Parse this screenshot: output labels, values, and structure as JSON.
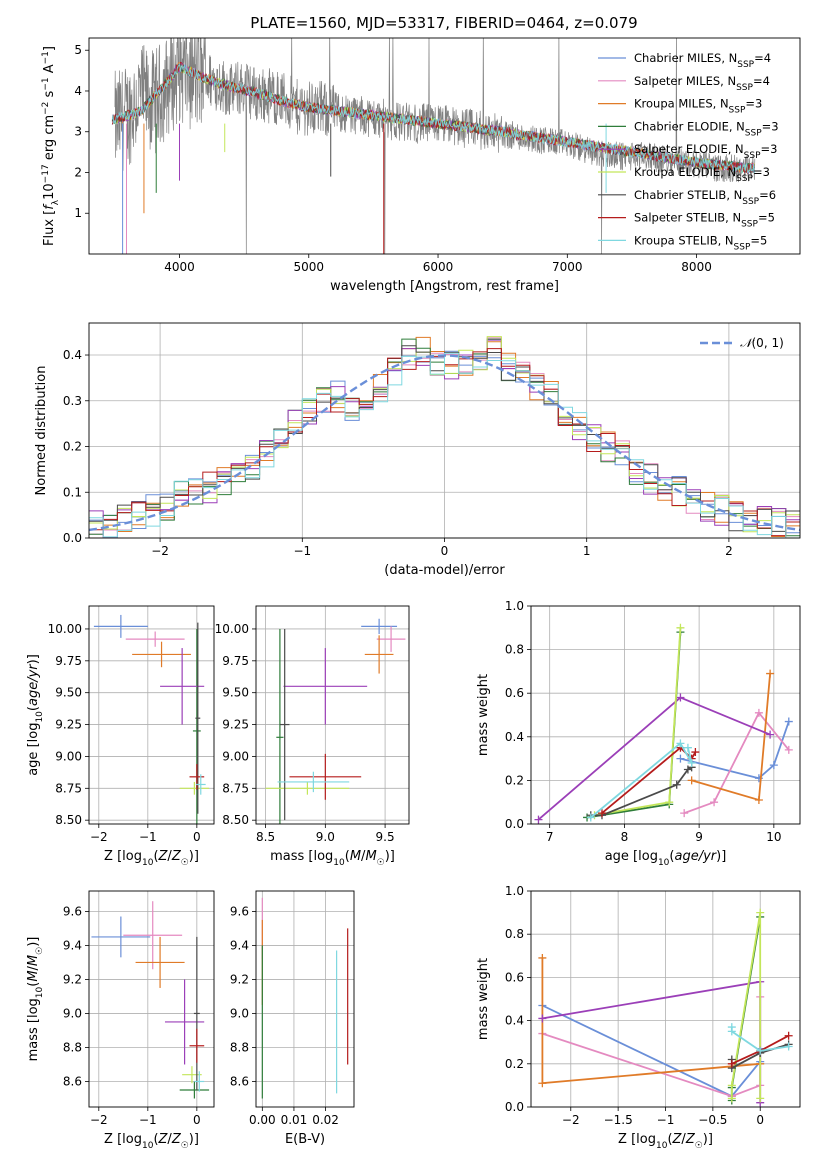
{
  "figure": {
    "title": "PLATE=1560, MJD=53317, FIBERID=0464, z=0.079"
  },
  "chart_data": [
    {
      "id": "spectrum",
      "type": "line",
      "title": "PLATE=1560, MJD=53317, FIBERID=0464, z=0.079",
      "xlabel": "wavelength [Angstrom, rest frame]",
      "ylabel": "Flux [fλ 10⁻¹⁷ erg cm⁻² s⁻¹ A⁻¹]",
      "xlim": [
        3300,
        8800
      ],
      "ylim": [
        0,
        5.3
      ],
      "xticks": [
        4000,
        5000,
        6000,
        7000,
        8000
      ],
      "yticks": [
        1,
        2,
        3,
        4,
        5
      ],
      "grid": false,
      "legend_position": "top-right",
      "data_color": "#808080",
      "data_x": [
        3500,
        3600,
        3700,
        3800,
        3900,
        4000,
        4100,
        4200,
        4300,
        4400,
        4500,
        4600,
        4700,
        4800,
        4900,
        5000,
        5200,
        5400,
        5600,
        5800,
        6000,
        6200,
        6400,
        6600,
        6800,
        7000,
        7200,
        7400,
        7600,
        7800,
        8000,
        8200,
        8400
      ],
      "data_y": [
        3.2,
        3.4,
        3.9,
        3.7,
        4.1,
        4.5,
        4.3,
        4.3,
        4.2,
        4.0,
        4.1,
        3.9,
        3.9,
        3.8,
        3.6,
        3.6,
        3.5,
        3.4,
        3.3,
        3.2,
        3.2,
        3.1,
        3.0,
        2.9,
        2.8,
        2.7,
        2.5,
        2.4,
        2.4,
        2.3,
        2.2,
        2.1,
        2.1
      ],
      "series": [
        {
          "name": "Chabrier MILES, N_SSP=4",
          "color": "#6a8fd8"
        },
        {
          "name": "Salpeter MILES, N_SSP=4",
          "color": "#e48ac0"
        },
        {
          "name": "Kroupa MILES, N_SSP=3",
          "color": "#e07b28"
        },
        {
          "name": "Chabrier ELODIE, N_SSP=3",
          "color": "#2f7d3a"
        },
        {
          "name": "Salpeter ELODIE, N_SSP=3",
          "color": "#9b3fb8"
        },
        {
          "name": "Kroupa ELODIE, N_SSP=3",
          "color": "#c3e65a"
        },
        {
          "name": "Chabrier STELIB, N_SSP=6",
          "color": "#4a4a4a"
        },
        {
          "name": "Salpeter STELIB, N_SSP=5",
          "color": "#b51c1c"
        },
        {
          "name": "Kroupa STELIB, N_SSP=5",
          "color": "#7fd8e0"
        }
      ],
      "legend_labels": [
        [
          "Chabrier MILES, N",
          "SSP",
          "=4"
        ],
        [
          "Salpeter MILES, N",
          "SSP",
          "=4"
        ],
        [
          "Kroupa MILES, N",
          "SSP",
          "=3"
        ],
        [
          "Chabrier ELODIE, N",
          "SSP",
          "=3"
        ],
        [
          "Salpeter ELODIE, N",
          "SSP",
          "=3"
        ],
        [
          "Kroupa ELODIE, N",
          "SSP",
          "=3"
        ],
        [
          "Chabrier STELIB, N",
          "SSP",
          "=6"
        ],
        [
          "Salpeter STELIB, N",
          "SSP",
          "=5"
        ],
        [
          "Kroupa STELIB, N",
          "SSP",
          "=5"
        ]
      ],
      "model_x": [
        3500,
        3700,
        3900,
        4000,
        4200,
        4400,
        4600,
        4800,
        5000,
        5500,
        6000,
        6500,
        7000,
        7500,
        8000,
        8400
      ],
      "model_y": [
        3.3,
        3.5,
        4.2,
        4.6,
        4.3,
        4.1,
        3.95,
        3.75,
        3.6,
        3.4,
        3.2,
        3.0,
        2.75,
        2.5,
        2.25,
        2.1
      ]
    },
    {
      "id": "residuals",
      "type": "histogram",
      "xlabel": "(data-model)/error",
      "ylabel": "Normed distribution",
      "xlim": [
        -2.5,
        2.5
      ],
      "ylim": [
        0,
        0.47
      ],
      "xticks": [
        -2,
        -1,
        0,
        1,
        2
      ],
      "yticks": [
        0.0,
        0.1,
        0.2,
        0.3,
        0.4
      ],
      "grid": true,
      "legend_position": "top-right",
      "reference_curve": {
        "name": "N(0,1)",
        "color": "#6a8fd8"
      },
      "bin_edges": [
        -2.5,
        -2.4,
        -2.3,
        -2.2,
        -2.1,
        -2.0,
        -1.9,
        -1.8,
        -1.7,
        -1.6,
        -1.5,
        -1.4,
        -1.3,
        -1.2,
        -1.1,
        -1.0,
        -0.9,
        -0.8,
        -0.7,
        -0.6,
        -0.5,
        -0.4,
        -0.3,
        -0.2,
        -0.1,
        0.0,
        0.1,
        0.2,
        0.3,
        0.4,
        0.5,
        0.6,
        0.7,
        0.8,
        0.9,
        1.0,
        1.1,
        1.2,
        1.3,
        1.4,
        1.5,
        1.6,
        1.7,
        1.8,
        1.9,
        2.0,
        2.1,
        2.2,
        2.3,
        2.4,
        2.5
      ],
      "hist_values": [
        0.03,
        0.035,
        0.04,
        0.05,
        0.06,
        0.07,
        0.09,
        0.1,
        0.11,
        0.12,
        0.14,
        0.16,
        0.19,
        0.21,
        0.25,
        0.28,
        0.3,
        0.31,
        0.28,
        0.3,
        0.33,
        0.36,
        0.4,
        0.41,
        0.39,
        0.38,
        0.39,
        0.4,
        0.41,
        0.37,
        0.35,
        0.33,
        0.31,
        0.28,
        0.25,
        0.22,
        0.2,
        0.18,
        0.15,
        0.13,
        0.11,
        0.1,
        0.08,
        0.07,
        0.06,
        0.05,
        0.045,
        0.04,
        0.035,
        0.03
      ]
    },
    {
      "id": "age-vs-Z",
      "type": "errorbar",
      "xlabel": "Z [log10(Z/Z☉)]",
      "ylabel": "age [log10(age/yr)]",
      "xlim": [
        -2.2,
        0.35
      ],
      "ylim": [
        8.47,
        10.18
      ],
      "xticks": [
        -2,
        -1,
        0
      ],
      "yticks": [
        8.5,
        8.75,
        9.0,
        9.25,
        9.5,
        9.75,
        10.0
      ],
      "points": [
        {
          "series": 0,
          "x": -1.55,
          "y": 10.02,
          "xerr": 0.55,
          "yerr": 0.09
        },
        {
          "series": 1,
          "x": -0.85,
          "y": 9.92,
          "xerr": 0.6,
          "yerr": 0.06
        },
        {
          "series": 2,
          "x": -0.72,
          "y": 9.8,
          "xerr": 0.6,
          "yerr": 0.1
        },
        {
          "series": 3,
          "x": 0.0,
          "y": 9.2,
          "xerr": 0.08,
          "yerr": 0.8
        },
        {
          "series": 4,
          "x": -0.3,
          "y": 9.55,
          "xerr": 0.45,
          "yerr": 0.3
        },
        {
          "series": 5,
          "x": -0.05,
          "y": 8.75,
          "xerr": 0.3,
          "yerr": 0.05
        },
        {
          "series": 6,
          "x": 0.02,
          "y": 9.3,
          "xerr": 0.05,
          "yerr": 0.75
        },
        {
          "series": 7,
          "x": 0.0,
          "y": 8.84,
          "xerr": 0.15,
          "yerr": 0.1
        },
        {
          "series": 8,
          "x": 0.08,
          "y": 8.78,
          "xerr": 0.1,
          "yerr": 0.08
        }
      ]
    },
    {
      "id": "age-vs-mass",
      "type": "errorbar",
      "xlabel": "mass [log10(M/M☉)]",
      "xlim": [
        8.42,
        9.7
      ],
      "ylim": [
        8.47,
        10.18
      ],
      "xticks": [
        8.5,
        9.0,
        9.5
      ],
      "yticks": [
        8.5,
        8.75,
        9.0,
        9.25,
        9.5,
        9.75,
        10.0
      ],
      "points": [
        {
          "series": 0,
          "x": 9.45,
          "y": 10.02,
          "xerr": 0.15,
          "yerr": 0.06
        },
        {
          "series": 1,
          "x": 9.55,
          "y": 9.92,
          "xerr": 0.12,
          "yerr": 0.1
        },
        {
          "series": 2,
          "x": 9.45,
          "y": 9.8,
          "xerr": 0.12,
          "yerr": 0.15
        },
        {
          "series": 3,
          "x": 8.62,
          "y": 9.15,
          "xerr": 0.03,
          "yerr": 0.85
        },
        {
          "series": 4,
          "x": 9.0,
          "y": 9.55,
          "xerr": 0.35,
          "yerr": 0.3
        },
        {
          "series": 5,
          "x": 8.85,
          "y": 8.75,
          "xerr": 0.35,
          "yerr": 0.05
        },
        {
          "series": 6,
          "x": 8.66,
          "y": 9.25,
          "xerr": 0.04,
          "yerr": 0.75
        },
        {
          "series": 7,
          "x": 9.0,
          "y": 8.84,
          "xerr": 0.3,
          "yerr": 0.18
        },
        {
          "series": 8,
          "x": 8.9,
          "y": 8.8,
          "xerr": 0.3,
          "yerr": 0.08
        }
      ]
    },
    {
      "id": "mass-weight-vs-age",
      "type": "line",
      "xlabel": "age [log10(age/yr)]",
      "ylabel": "mass weight",
      "xlim": [
        6.75,
        10.35
      ],
      "ylim": [
        0,
        1.0
      ],
      "xticks": [
        7,
        8,
        9,
        10
      ],
      "yticks": [
        0.0,
        0.2,
        0.4,
        0.6,
        0.8,
        1.0
      ],
      "grid": true,
      "lines": [
        {
          "series": 0,
          "points": [
            [
              8.75,
              0.3
            ],
            [
              9.8,
              0.21
            ],
            [
              10.0,
              0.27
            ],
            [
              10.2,
              0.47
            ]
          ]
        },
        {
          "series": 1,
          "points": [
            [
              8.8,
              0.05
            ],
            [
              9.2,
              0.1
            ],
            [
              9.8,
              0.51
            ],
            [
              10.2,
              0.34
            ]
          ]
        },
        {
          "series": 2,
          "points": [
            [
              8.9,
              0.2
            ],
            [
              9.8,
              0.11
            ],
            [
              9.95,
              0.69
            ]
          ]
        },
        {
          "series": 3,
          "points": [
            [
              7.5,
              0.03
            ],
            [
              8.6,
              0.09
            ],
            [
              8.75,
              0.88
            ]
          ]
        },
        {
          "series": 4,
          "points": [
            [
              6.85,
              0.02
            ],
            [
              8.75,
              0.58
            ],
            [
              9.95,
              0.41
            ]
          ]
        },
        {
          "series": 5,
          "points": [
            [
              7.6,
              0.04
            ],
            [
              8.6,
              0.1
            ],
            [
              8.75,
              0.9
            ]
          ]
        },
        {
          "series": 6,
          "points": [
            [
              7.55,
              0.04
            ],
            [
              7.7,
              0.04
            ],
            [
              8.7,
              0.18
            ],
            [
              8.85,
              0.25
            ],
            [
              8.9,
              0.26
            ]
          ]
        },
        {
          "series": 7,
          "points": [
            [
              7.7,
              0.05
            ],
            [
              8.75,
              0.35
            ],
            [
              8.9,
              0.3
            ],
            [
              8.95,
              0.33
            ]
          ]
        },
        {
          "series": 8,
          "points": [
            [
              7.55,
              0.03
            ],
            [
              8.75,
              0.37
            ],
            [
              8.9,
              0.28
            ],
            [
              8.85,
              0.35
            ]
          ]
        }
      ]
    },
    {
      "id": "mass-vs-Z",
      "type": "errorbar",
      "xlabel": "Z [log10(Z/Z☉)]",
      "ylabel": "mass [log10(M/M☉)]",
      "xlim": [
        -2.2,
        0.35
      ],
      "ylim": [
        8.45,
        9.72
      ],
      "xticks": [
        -2,
        -1,
        0
      ],
      "yticks": [
        8.6,
        8.8,
        9.0,
        9.2,
        9.4,
        9.6
      ],
      "points": [
        {
          "series": 0,
          "x": -1.55,
          "y": 9.45,
          "xerr": 0.6,
          "yerr": 0.12
        },
        {
          "series": 1,
          "x": -0.9,
          "y": 9.46,
          "xerr": 0.6,
          "yerr": 0.2
        },
        {
          "series": 2,
          "x": -0.75,
          "y": 9.3,
          "xerr": 0.5,
          "yerr": 0.15
        },
        {
          "series": 3,
          "x": -0.05,
          "y": 8.55,
          "xerr": 0.3,
          "yerr": 0.05
        },
        {
          "series": 4,
          "x": -0.25,
          "y": 8.95,
          "xerr": 0.4,
          "yerr": 0.25
        },
        {
          "series": 5,
          "x": -0.1,
          "y": 8.64,
          "xerr": 0.2,
          "yerr": 0.05
        },
        {
          "series": 6,
          "x": 0.0,
          "y": 9.0,
          "xerr": 0.06,
          "yerr": 0.45
        },
        {
          "series": 7,
          "x": 0.0,
          "y": 8.81,
          "xerr": 0.15,
          "yerr": 0.1
        },
        {
          "series": 8,
          "x": 0.05,
          "y": 8.6,
          "xerr": 0.1,
          "yerr": 0.06
        }
      ]
    },
    {
      "id": "mass-vs-EBV",
      "type": "errorbar",
      "xlabel": "E(B-V)",
      "xlim": [
        -0.002,
        0.029
      ],
      "ylim": [
        8.45,
        9.72
      ],
      "xticks": [
        0.0,
        0.01,
        0.02
      ],
      "yticks": [
        8.6,
        8.8,
        9.0,
        9.2,
        9.4,
        9.6
      ],
      "points": [
        {
          "series": 1,
          "x": 0.0,
          "y": 9.5,
          "xerr": 0,
          "yerr": 0.18
        },
        {
          "series": 2,
          "x": 0.0,
          "y": 9.3,
          "xerr": 0,
          "yerr": 0.25
        },
        {
          "series": 3,
          "x": 0.0,
          "y": 8.95,
          "xerr": 0,
          "yerr": 0.45
        },
        {
          "series": 8,
          "x": 0.0235,
          "y": 8.95,
          "xerr": 0,
          "yerr": 0.42
        },
        {
          "series": 7,
          "x": 0.027,
          "y": 9.1,
          "xerr": 0,
          "yerr": 0.4
        }
      ]
    },
    {
      "id": "mass-weight-vs-Z",
      "type": "line",
      "xlabel": "Z [log10(Z/Z☉)]",
      "ylabel": "mass weight",
      "xlim": [
        -2.42,
        0.42
      ],
      "ylim": [
        0,
        1.0
      ],
      "xticks": [
        -2.0,
        -1.5,
        -1.0,
        -0.5,
        0.0
      ],
      "yticks": [
        0.0,
        0.2,
        0.4,
        0.6,
        0.8,
        1.0
      ],
      "grid": true,
      "lines": [
        {
          "series": 0,
          "points": [
            [
              -2.3,
              0.47
            ],
            [
              -0.3,
              0.05
            ],
            [
              0.0,
              0.21
            ],
            [
              0.0,
              0.27
            ]
          ]
        },
        {
          "series": 1,
          "points": [
            [
              -2.3,
              0.34
            ],
            [
              -0.3,
              0.05
            ],
            [
              0.0,
              0.1
            ],
            [
              0.0,
              0.51
            ]
          ]
        },
        {
          "series": 2,
          "points": [
            [
              -2.3,
              0.69
            ],
            [
              -2.3,
              0.11
            ],
            [
              0.0,
              0.2
            ]
          ]
        },
        {
          "series": 3,
          "points": [
            [
              -0.3,
              0.03
            ],
            [
              -0.3,
              0.09
            ],
            [
              0.0,
              0.88
            ]
          ]
        },
        {
          "series": 4,
          "points": [
            [
              -2.3,
              0.41
            ],
            [
              0.0,
              0.58
            ],
            [
              0.0,
              0.02
            ]
          ]
        },
        {
          "series": 5,
          "points": [
            [
              -0.3,
              0.04
            ],
            [
              -0.3,
              0.1
            ],
            [
              0.0,
              0.9
            ],
            [
              0.0,
              0.04
            ]
          ]
        },
        {
          "series": 6,
          "points": [
            [
              -0.3,
              0.22
            ],
            [
              -0.3,
              0.18
            ],
            [
              0.0,
              0.25
            ],
            [
              0.3,
              0.29
            ]
          ]
        },
        {
          "series": 7,
          "points": [
            [
              -0.3,
              0.2
            ],
            [
              0.0,
              0.26
            ],
            [
              0.3,
              0.33
            ]
          ]
        },
        {
          "series": 8,
          "points": [
            [
              -0.3,
              0.37
            ],
            [
              -0.3,
              0.35
            ],
            [
              0.0,
              0.26
            ],
            [
              0.3,
              0.28
            ]
          ]
        }
      ]
    }
  ]
}
